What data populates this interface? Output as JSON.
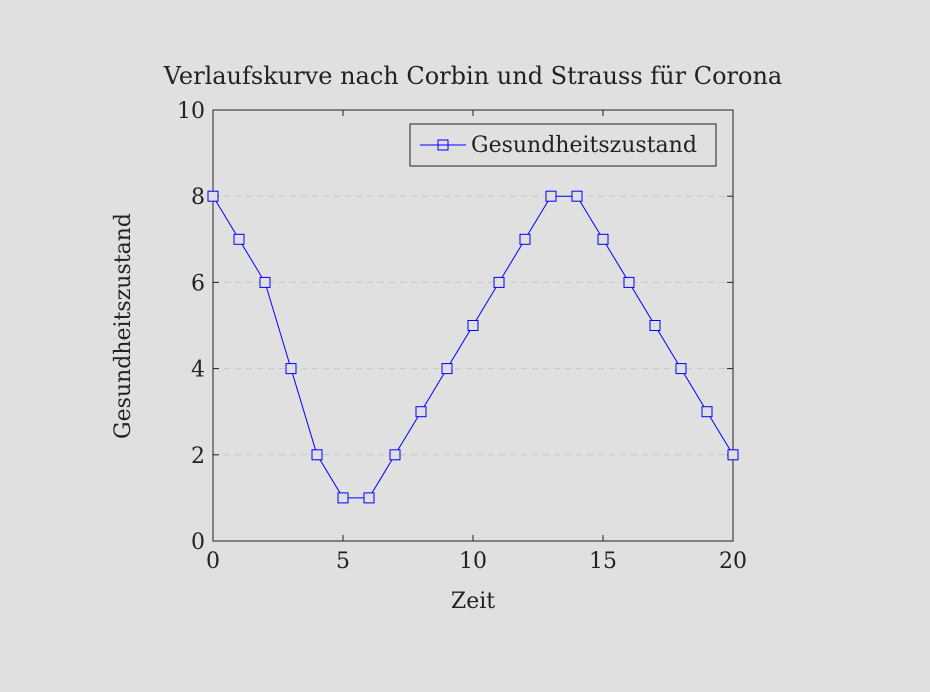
{
  "chart_data": {
    "type": "line",
    "title": "Verlaufskurve nach Corbin und Strauss für Corona",
    "xlabel": "Zeit",
    "ylabel": "Gesundheitszustand",
    "xlim": [
      0,
      20
    ],
    "ylim": [
      0,
      10
    ],
    "xticks": [
      0,
      5,
      10,
      15,
      20
    ],
    "yticks": [
      0,
      2,
      4,
      6,
      8,
      10
    ],
    "grid": "horizontal dashed",
    "legend": "top-right",
    "series": [
      {
        "name": "Gesundheitszustand",
        "color": "#0000ff",
        "marker": "square",
        "x": [
          0,
          1,
          2,
          3,
          4,
          5,
          6,
          7,
          8,
          9,
          10,
          11,
          12,
          13,
          14,
          15,
          16,
          17,
          18,
          19,
          20
        ],
        "y": [
          8,
          7,
          6,
          4,
          2,
          1,
          1,
          2,
          3,
          4,
          5,
          6,
          7,
          8,
          8,
          7,
          6,
          5,
          4,
          3,
          2
        ]
      }
    ]
  }
}
